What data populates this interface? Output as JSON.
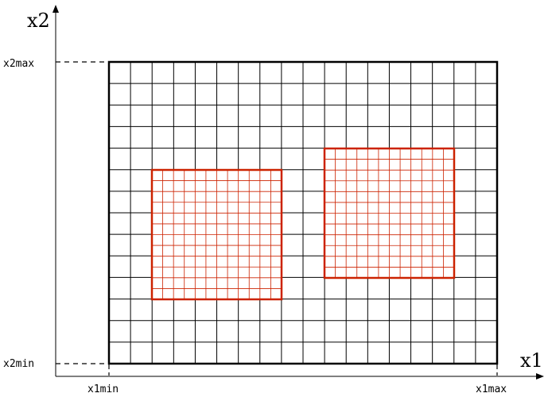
{
  "axes": {
    "x_title": "x1",
    "y_title": "x2",
    "x_min_label": "x1min",
    "x_max_label": "x1max",
    "y_min_label": "x2min",
    "y_max_label": "x2max"
  },
  "coarse_grid": {
    "columns": 18,
    "rows": 14,
    "color": "#000000"
  },
  "refined_regions": [
    {
      "name": "left-refined-region",
      "columns": 12,
      "rows": 12,
      "color": "#cc2200"
    },
    {
      "name": "right-refined-region",
      "columns": 12,
      "rows": 12,
      "color": "#cc2200"
    }
  ]
}
